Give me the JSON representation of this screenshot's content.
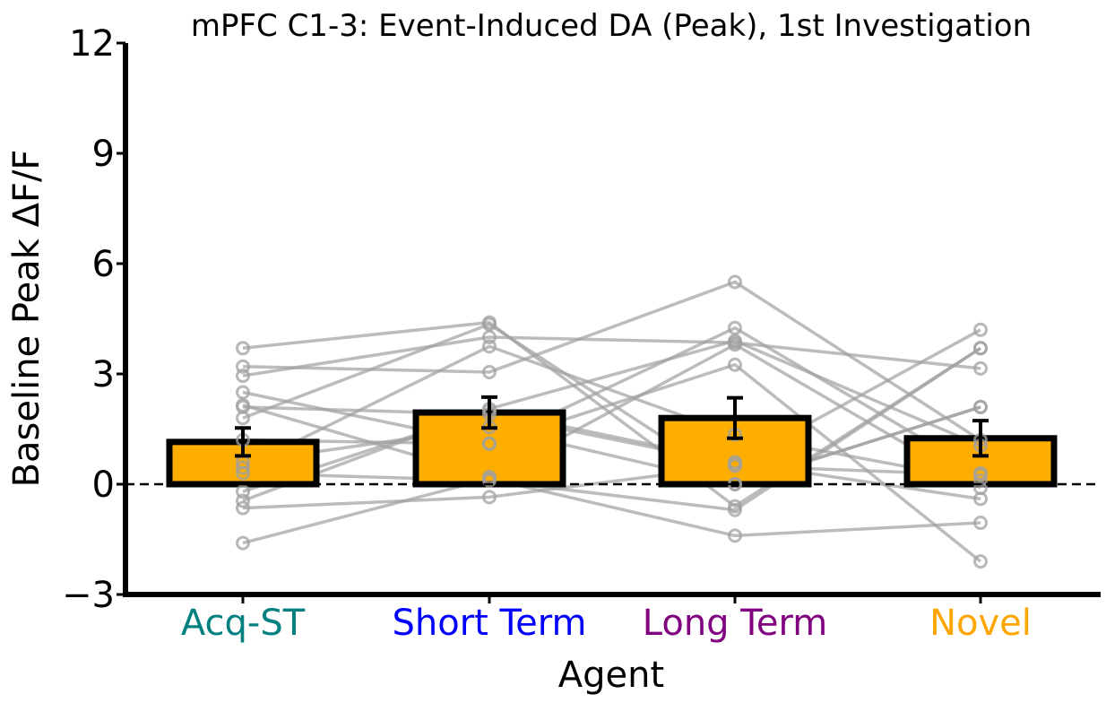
{
  "chart_data": {
    "type": "bar",
    "title": "mPFC C1-3: Event-Induced DA (Peak), 1st Investigation",
    "xlabel": "Agent",
    "ylabel": "Baseline Peak ΔF/F",
    "ylim": [
      -3,
      12
    ],
    "yticks": [
      "−3",
      "0",
      "3",
      "6",
      "9",
      "12"
    ],
    "ytick_values": [
      -3,
      0,
      3,
      6,
      9,
      12
    ],
    "categories": [
      "Acq-ST",
      "Short Term",
      "Long Term",
      "Novel"
    ],
    "category_colors": [
      "#008080",
      "#0000ff",
      "#800080",
      "#ffa500"
    ],
    "bar_color": "#ffae00",
    "values": [
      1.15,
      1.95,
      1.8,
      1.25
    ],
    "error": [
      0.38,
      0.42,
      0.55,
      0.48
    ],
    "reference_line": 0,
    "subjects": [
      [
        3.7,
        4.4,
        -0.6,
        3.7
      ],
      [
        3.2,
        3.05,
        5.5,
        1.2
      ],
      [
        2.95,
        4.0,
        3.85,
        3.15
      ],
      [
        2.5,
        1.1,
        4.25,
        0.3
      ],
      [
        2.15,
        0.2,
        3.8,
        -0.1
      ],
      [
        2.1,
        1.9,
        0.55,
        4.2
      ],
      [
        1.8,
        4.35,
        0.0,
        2.1
      ],
      [
        1.2,
        1.1,
        3.25,
        -2.1
      ],
      [
        0.6,
        1.55,
        0.0,
        2.1
      ],
      [
        0.45,
        3.75,
        1.35,
        0.1
      ],
      [
        0.3,
        0.1,
        -0.7,
        3.7
      ],
      [
        -0.2,
        2.0,
        0.6,
        -0.4
      ],
      [
        -0.45,
        2.05,
        3.9,
        1.05
      ],
      [
        -0.65,
        -0.35,
        0.5,
        0.25
      ],
      [
        -1.6,
        0.15,
        -1.4,
        -1.05
      ]
    ],
    "grid": false,
    "legend": "none"
  }
}
